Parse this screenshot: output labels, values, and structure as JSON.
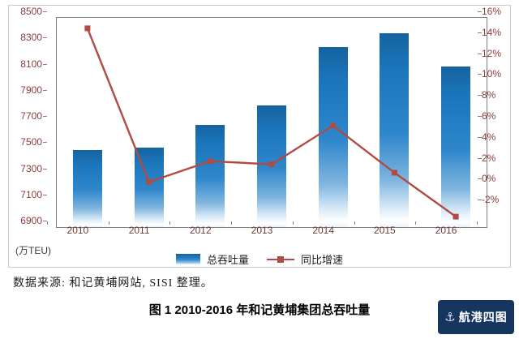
{
  "chart_data": {
    "type": "bar",
    "combo": "bar+line",
    "title": "",
    "categories": [
      "2010",
      "2011",
      "2012",
      "2013",
      "2014",
      "2015",
      "2016"
    ],
    "series": [
      {
        "name": "总吞吐量",
        "type": "bar",
        "axis": "left",
        "color": "#1B75BB",
        "values": [
          7490,
          7510,
          7680,
          7830,
          8280,
          8380,
          8130
        ]
      },
      {
        "name": "同比增速",
        "type": "line",
        "axis": "right",
        "color": "#B04A45",
        "values": [
          15.0,
          0.3,
          2.3,
          2.0,
          5.7,
          1.2,
          -3.0
        ]
      }
    ],
    "left_axis": {
      "min": 6900,
      "max": 8500,
      "tick_values": [
        8500,
        8300,
        8100,
        7900,
        7700,
        7500,
        7300,
        7100,
        6900
      ],
      "ticks": [
        "8500",
        "8300",
        "8100",
        "7900",
        "7700",
        "7500",
        "7300",
        "7100",
        "6900"
      ]
    },
    "right_axis": {
      "min": -4,
      "max": 16,
      "tick_values": [
        16,
        14,
        12,
        10,
        8,
        6,
        4,
        2,
        0,
        -2
      ],
      "ticks": [
        "16%",
        "14%",
        "12%",
        "10%",
        "8%",
        "6%",
        "4%",
        "2%",
        "0%",
        "-2%"
      ]
    },
    "unit_label": "(万TEU)",
    "grid": false,
    "legend_position": "bottom"
  },
  "legend": {
    "bar_label": "总吞吐量",
    "line_label": "同比增速"
  },
  "source_note": "数据来源: 和记黄埔网站, SISI 整理。",
  "caption": "图 1  2010-2016 年和记黄埔集团总吞吐量",
  "watermark": {
    "text": "航港四图"
  },
  "colors": {
    "bar_top": "#1B75BB",
    "line": "#B04A45",
    "axis_text": "#8B3A3A",
    "watermark_bg": "#16355F"
  }
}
